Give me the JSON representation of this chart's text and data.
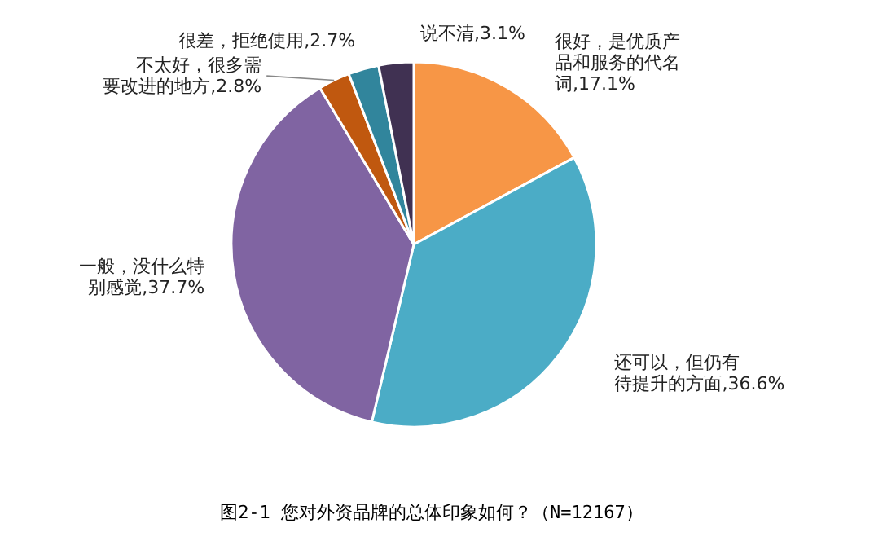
{
  "chart_data": {
    "type": "pie",
    "title": "图2-1 您对外资品牌的总体印象如何？（N=12167）",
    "categories": [
      "很好，是优质产品和服务的代名词",
      "还可以，但仍有待提升的方面",
      "一般，没什么特别感觉",
      "不太好，很多需要改进的地方",
      "很差，拒绝使用",
      "说不清"
    ],
    "values": [
      17.1,
      36.6,
      37.7,
      2.8,
      2.7,
      3.1
    ],
    "colors": [
      "#f79646",
      "#4bacc6",
      "#8064a2",
      "#c0580f",
      "#31859c",
      "#403152"
    ],
    "value_labels": [
      "17.1%",
      "36.6%",
      "37.7%",
      "2.8%",
      "2.7%",
      "3.1%"
    ]
  }
}
